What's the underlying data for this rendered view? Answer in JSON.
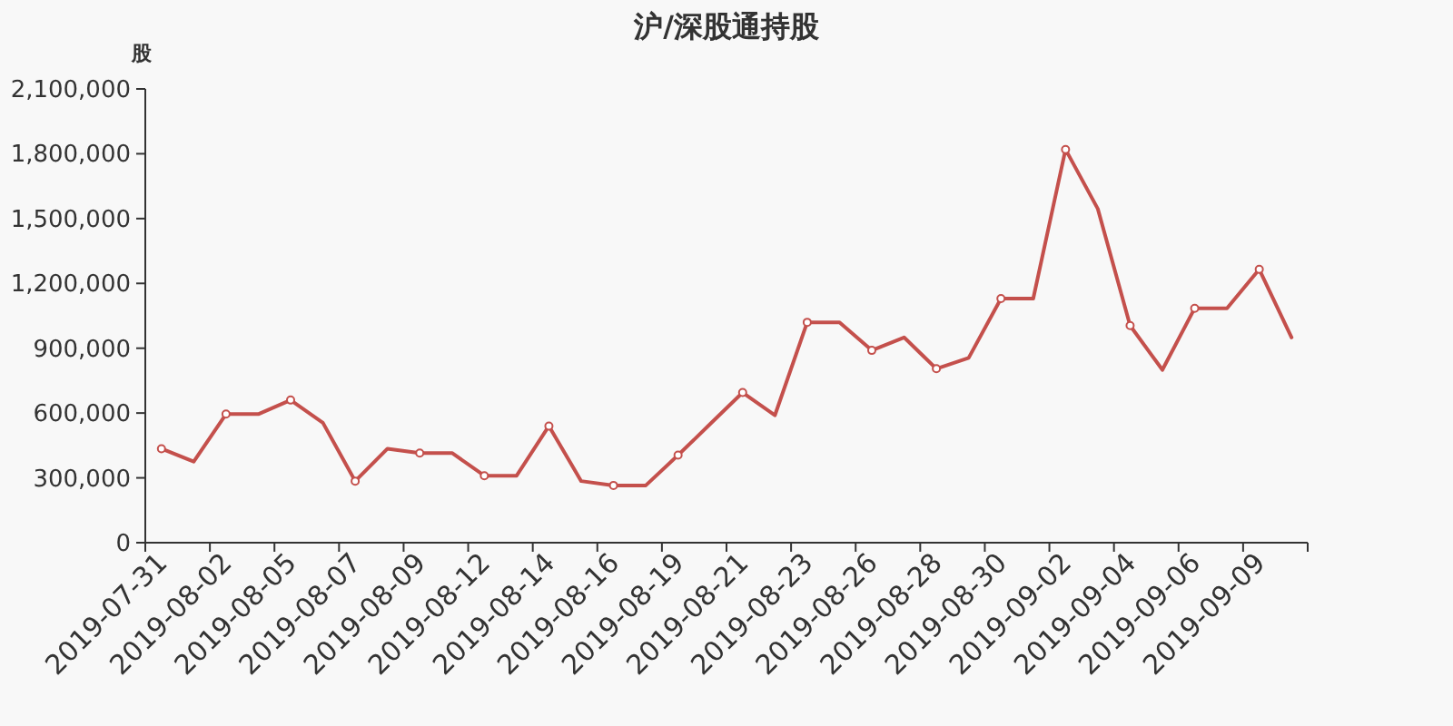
{
  "chart_data": {
    "type": "line",
    "title": "沪/深股通持股",
    "ylabel": "股",
    "categories": [
      "2019-07-31",
      null,
      "2019-08-02",
      null,
      "2019-08-05",
      null,
      "2019-08-07",
      null,
      "2019-08-09",
      null,
      "2019-08-12",
      null,
      "2019-08-14",
      null,
      "2019-08-16",
      null,
      "2019-08-19",
      null,
      "2019-08-21",
      null,
      "2019-08-23",
      null,
      "2019-08-26",
      null,
      "2019-08-28",
      null,
      "2019-08-30",
      null,
      "2019-09-02",
      null,
      "2019-09-04",
      null,
      "2019-09-06",
      null,
      "2019-09-09",
      null
    ],
    "series": [
      {
        "color": "#c4504c",
        "values": [
          435000,
          375000,
          595000,
          595000,
          660000,
          555000,
          285000,
          435000,
          415000,
          415000,
          310000,
          310000,
          540000,
          285000,
          265000,
          265000,
          405000,
          550000,
          695000,
          590000,
          1020000,
          1020000,
          890000,
          950000,
          805000,
          855000,
          1130000,
          1130000,
          1820000,
          1545000,
          1005000,
          800000,
          1085000,
          1085000,
          1265000,
          950000
        ]
      }
    ],
    "ylim": [
      0,
      2100000
    ],
    "yticks": [
      0,
      {
        "value": 300000,
        "label": "300,000"
      },
      {
        "value": 600000,
        "label": "600,000"
      },
      {
        "value": 900000,
        "label": "900,000"
      },
      {
        "value": 1200000,
        "label": "1,200,000"
      },
      {
        "value": 1500000,
        "label": "1,500,000"
      },
      {
        "value": 1800000,
        "label": "1,800,000"
      },
      {
        "value": 2100000,
        "label": "2,100,000"
      }
    ],
    "marker": "circle"
  }
}
